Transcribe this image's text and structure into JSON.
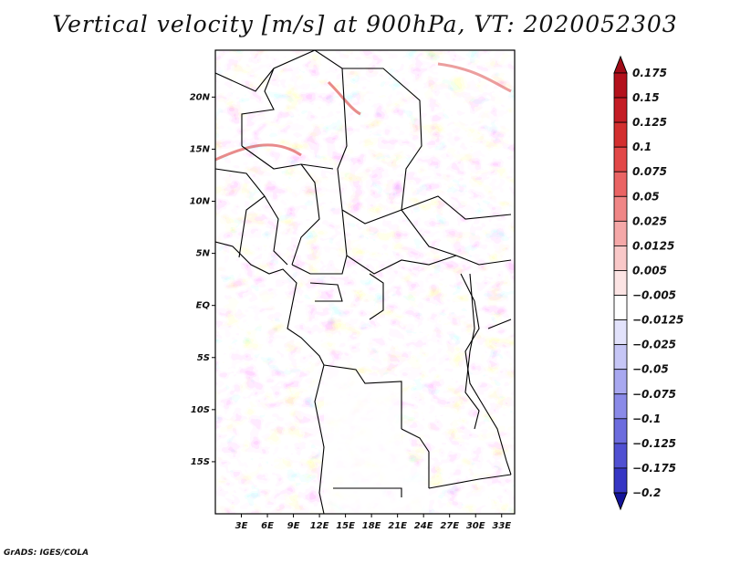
{
  "title": "Vertical velocity [m/s] at 900hPa, VT: 2020052303",
  "credit": "GrADS: IGES/COLA",
  "map": {
    "lon_range": [
      0,
      34.5
    ],
    "lat_range": [
      -20,
      24.5
    ],
    "x_ticks": [
      {
        "lon": 3,
        "label": "3E"
      },
      {
        "lon": 6,
        "label": "6E"
      },
      {
        "lon": 9,
        "label": "9E"
      },
      {
        "lon": 12,
        "label": "12E"
      },
      {
        "lon": 15,
        "label": "15E"
      },
      {
        "lon": 18,
        "label": "18E"
      },
      {
        "lon": 21,
        "label": "21E"
      },
      {
        "lon": 24,
        "label": "24E"
      },
      {
        "lon": 27,
        "label": "27E"
      },
      {
        "lon": 30,
        "label": "30E"
      },
      {
        "lon": 33,
        "label": "33E"
      }
    ],
    "y_ticks": [
      {
        "lat": 20,
        "label": "20N"
      },
      {
        "lat": 15,
        "label": "15N"
      },
      {
        "lat": 10,
        "label": "10N"
      },
      {
        "lat": 5,
        "label": "5N"
      },
      {
        "lat": 0,
        "label": "EQ"
      },
      {
        "lat": -5,
        "label": "5S"
      },
      {
        "lat": -10,
        "label": "10S"
      },
      {
        "lat": -15,
        "label": "15S"
      }
    ]
  },
  "colorbar": {
    "levels": [
      {
        "label": "0.175",
        "color": "#b3111c"
      },
      {
        "label": "0.15",
        "color": "#c41d25"
      },
      {
        "label": "0.125",
        "color": "#d32f2f"
      },
      {
        "label": "0.1",
        "color": "#e24848"
      },
      {
        "label": "0.075",
        "color": "#ea6464"
      },
      {
        "label": "0.05",
        "color": "#f08686"
      },
      {
        "label": "0.025",
        "color": "#f5a8a8"
      },
      {
        "label": "0.0125",
        "color": "#f9c8c8"
      },
      {
        "label": "0.005",
        "color": "#fce4e4"
      },
      {
        "label": "−0.005",
        "color": "#ffffff"
      },
      {
        "label": "−0.0125",
        "color": "#e2e2fb"
      },
      {
        "label": "−0.025",
        "color": "#c6c6f6"
      },
      {
        "label": "−0.05",
        "color": "#a8a8f0"
      },
      {
        "label": "−0.075",
        "color": "#8a8ae8"
      },
      {
        "label": "−0.1",
        "color": "#6c6cde"
      },
      {
        "label": "−0.125",
        "color": "#5050d2"
      },
      {
        "label": "−0.175",
        "color": "#3636c4"
      },
      {
        "label": "−0.2",
        "color": "#1e1eb0"
      }
    ],
    "top_color": "#a00c18",
    "bottom_color": "#14149a"
  }
}
